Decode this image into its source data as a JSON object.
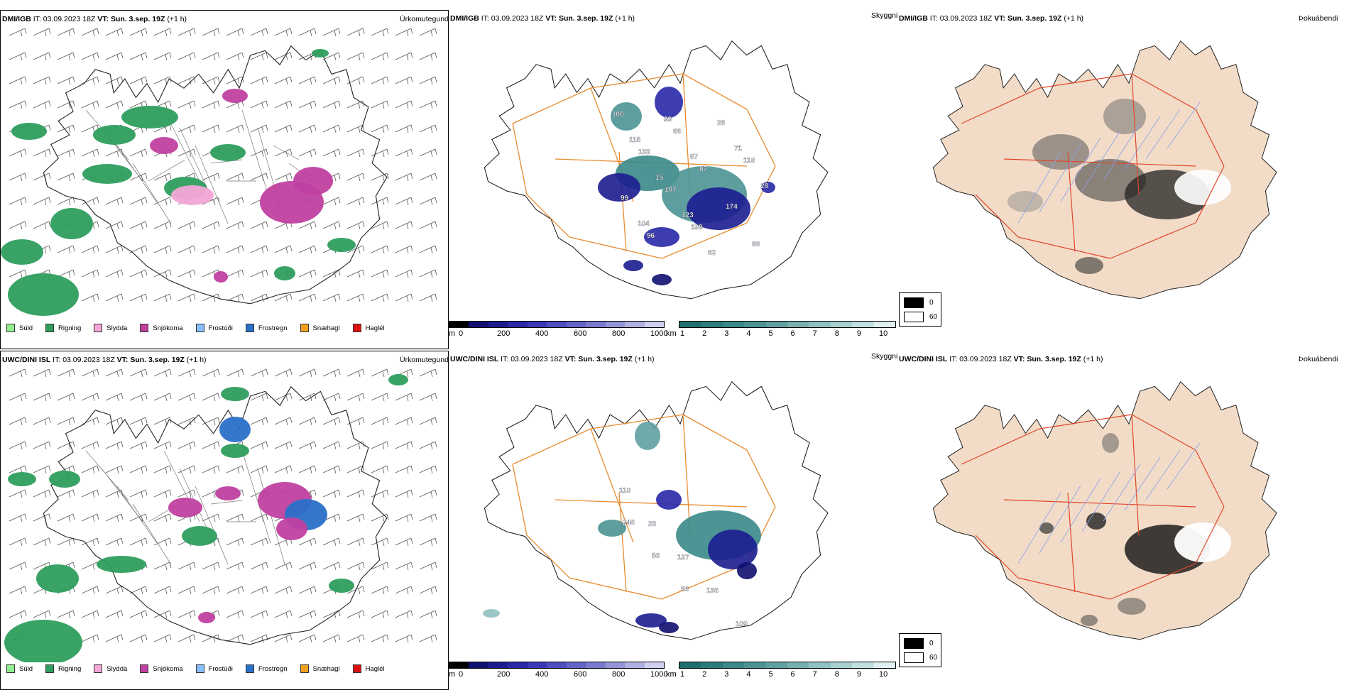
{
  "rows": [
    {
      "model": "DMI/IGB",
      "it_label": "IT:",
      "it_value": "03.09.2023 18Z",
      "vt_label": "VT:",
      "vt_value": "Sun. 3.sep. 19Z",
      "lead": "(+1 h)",
      "var_precip": "Úrkomutegund",
      "var_cloud": "Skyggni",
      "var_fog": "Þokuábendi"
    },
    {
      "model": "UWC/DINI ISL",
      "it_label": "IT:",
      "it_value": "03.09.2023 18Z",
      "vt_label": "VT:",
      "vt_value": "Sun. 3.sep. 19Z",
      "lead": "(+1 h)",
      "var_precip": "Úrkomutegund",
      "var_cloud": "Skyggni",
      "var_fog": "Þokuábendi"
    }
  ],
  "precip_legend": [
    {
      "label": "Súld",
      "color": "#90ee90"
    },
    {
      "label": "Rigning",
      "color": "#2e9e5e"
    },
    {
      "label": "Slydda",
      "color": "#f4a6d7"
    },
    {
      "label": "Snjókoma",
      "color": "#c040a0"
    },
    {
      "label": "Frostúði",
      "color": "#87bfff"
    },
    {
      "label": "Frostregn",
      "color": "#2a70c8"
    },
    {
      "label": "Snæhagl",
      "color": "#f0a020"
    },
    {
      "label": "Haglél",
      "color": "#dd1010"
    }
  ],
  "ceiling_scale": {
    "unit": "m",
    "ticks": [
      "0",
      "200",
      "400",
      "600",
      "800",
      "1000"
    ],
    "colors": [
      "#000000",
      "#101070",
      "#1c1c90",
      "#2828a8",
      "#3a3ab8",
      "#4e4ec0",
      "#6464c8",
      "#7a7ad0",
      "#9494d8",
      "#b0b0e0",
      "#d0d0ee"
    ]
  },
  "visibility_scale": {
    "unit": "km",
    "ticks": [
      "1",
      "2",
      "3",
      "4",
      "5",
      "6",
      "7",
      "8",
      "9",
      "10"
    ],
    "colors": [
      "#1e7070",
      "#2a7c7c",
      "#3a8888",
      "#4c9494",
      "#60a0a0",
      "#78b0b0",
      "#90c0c0",
      "#a8d0d0",
      "#c0e0e0",
      "#e0f0f0"
    ]
  },
  "fog_legend": [
    {
      "label": "0",
      "color": "#000000"
    },
    {
      "label": "60",
      "color": "#ffffff"
    }
  ],
  "cloud_labels": [
    [
      "100",
      "133",
      "107",
      "199",
      "28",
      "110",
      "99",
      "96",
      "66",
      "87",
      "174",
      "88",
      "115",
      "15",
      "123",
      "82",
      "71",
      "28",
      "104",
      "99",
      "57"
    ],
    [
      "110",
      "23",
      "127",
      "136",
      "109",
      "248",
      "56",
      "56"
    ]
  ]
}
